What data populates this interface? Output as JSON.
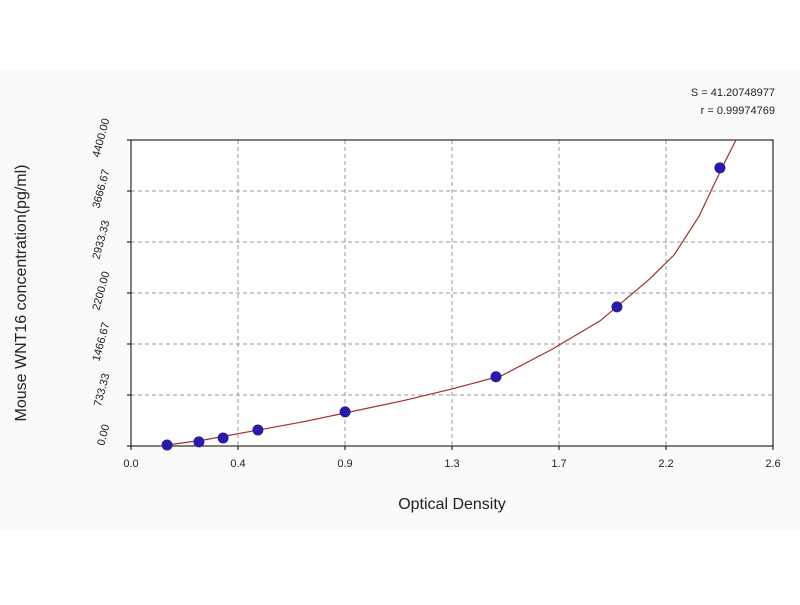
{
  "chart_data": {
    "type": "scatter",
    "x_label": "Optical Density",
    "y_label": "Mouse WNT16 concentration(pg/ml)",
    "annotations": [
      "S = 41.20748977",
      "r = 0.99974769"
    ],
    "xlim": [
      0,
      2.6
    ],
    "ylim": [
      0,
      4400
    ],
    "xticks": [
      {
        "value": 0,
        "label": "0.0"
      },
      {
        "value": 0.4333,
        "label": "0.4"
      },
      {
        "value": 0.8667,
        "label": "0.9"
      },
      {
        "value": 1.3,
        "label": "1.3"
      },
      {
        "value": 1.7333,
        "label": "1.7"
      },
      {
        "value": 2.1667,
        "label": "2.2"
      },
      {
        "value": 2.6,
        "label": "2.6"
      }
    ],
    "yticks": [
      {
        "value": 0,
        "label": "0.00"
      },
      {
        "value": 733.33,
        "label": "733.33"
      },
      {
        "value": 1466.67,
        "label": "1466.67"
      },
      {
        "value": 2200,
        "label": "2200.00"
      },
      {
        "value": 2933.33,
        "label": "2933.33"
      },
      {
        "value": 3666.67,
        "label": "3666.67"
      },
      {
        "value": 4400,
        "label": "4400.00"
      }
    ],
    "grid": true,
    "series": [
      {
        "kind": "points",
        "color": "#2a1aa8",
        "x": [
          0.146,
          0.275,
          0.373,
          0.514,
          0.867,
          1.478,
          1.968,
          2.385
        ],
        "values": [
          15,
          60,
          115,
          230,
          490,
          995,
          2000,
          4000
        ]
      },
      {
        "kind": "fit",
        "color": "#a0302a",
        "x": [
          0.12,
          0.3,
          0.5,
          0.7,
          0.9,
          1.1,
          1.3,
          1.5,
          1.7,
          1.9,
          2.0,
          2.1,
          2.2,
          2.3,
          2.4,
          2.45
        ],
        "values": [
          0,
          90,
          220,
          350,
          500,
          650,
          820,
          1010,
          1380,
          1800,
          2100,
          2400,
          2750,
          3300,
          4050,
          4400
        ]
      }
    ]
  }
}
